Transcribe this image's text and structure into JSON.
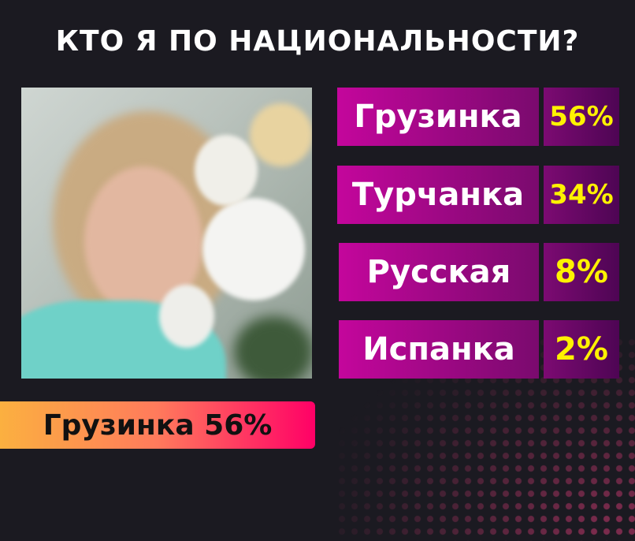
{
  "title": "КТО Я ПО НАЦИОНАЛЬНОСТИ?",
  "options": [
    {
      "label": "Грузинка",
      "percent": "56%"
    },
    {
      "label": "Турчанка",
      "percent": "34%"
    },
    {
      "label": "Русская",
      "percent": "8%"
    },
    {
      "label": "Испанка",
      "percent": "2%"
    }
  ],
  "result": "Грузинка 56%",
  "colors": {
    "background": "#1b1a21",
    "option_bar": "#c4069c",
    "percent_text": "#fff200",
    "result_gradient_start": "#fbb040",
    "result_gradient_end": "#ff0066"
  }
}
